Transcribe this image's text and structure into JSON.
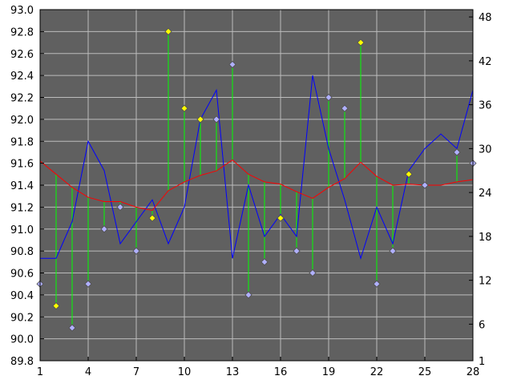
{
  "chart_data": {
    "type": "line",
    "title": "",
    "xlabel": "",
    "ylabel": "",
    "x": [
      1,
      2,
      3,
      4,
      5,
      6,
      7,
      8,
      9,
      10,
      11,
      12,
      13,
      14,
      15,
      16,
      17,
      18,
      19,
      20,
      21,
      22,
      23,
      24,
      25,
      26,
      27,
      28
    ],
    "x_ticks": [
      1,
      4,
      7,
      10,
      13,
      16,
      19,
      22,
      25,
      28
    ],
    "xlim": [
      1,
      28
    ],
    "ylim_left": [
      89.8,
      93.0
    ],
    "y_ticks_left": [
      "89.8",
      "90.0",
      "90.2",
      "90.4",
      "90.6",
      "90.8",
      "91.0",
      "91.2",
      "91.4",
      "91.6",
      "91.8",
      "92.0",
      "92.2",
      "92.4",
      "92.6",
      "92.8",
      "93.0"
    ],
    "ylim_right": [
      1,
      49
    ],
    "y_ticks_right": [
      "1",
      "6",
      "12",
      "18",
      "24",
      "30",
      "36",
      "42",
      "48"
    ],
    "grid": true,
    "series": [
      {
        "role": "markers-left",
        "values": [
          90.5,
          90.3,
          90.1,
          90.5,
          91.0,
          91.2,
          90.8,
          91.1,
          92.8,
          92.1,
          92.0,
          92.0,
          92.5,
          90.4,
          90.7,
          91.1,
          90.8,
          90.6,
          92.2,
          92.1,
          92.7,
          90.5,
          90.8,
          91.5,
          91.4,
          null,
          91.7,
          91.6
        ],
        "marker_colors": [
          "#b0b0ff",
          "#ffff00",
          "#b0b0ff",
          "#b0b0ff",
          "#b0b0ff",
          "#b0b0ff",
          "#b0b0ff",
          "#ffff00",
          "#ffff00",
          "#ffff00",
          "#ffff00",
          "#b0b0ff",
          "#b0b0ff",
          "#b0b0ff",
          "#b0b0ff",
          "#ffff00",
          "#b0b0ff",
          "#b0b0ff",
          "#b0b0ff",
          "#b0b0ff",
          "#ffff00",
          "#b0b0ff",
          "#b0b0ff",
          "#ffff00",
          "#b0b0ff",
          "#b0b0ff",
          "#b0b0ff",
          "#b0b0ff"
        ],
        "color": "#00ff00"
      },
      {
        "role": "line-right",
        "axis": "right",
        "values": [
          15,
          15,
          20,
          31,
          27,
          17,
          20,
          23,
          17,
          22,
          34,
          38,
          15,
          25,
          18,
          21,
          18,
          40,
          30,
          23,
          15,
          22,
          17,
          27,
          30,
          32,
          30,
          38
        ],
        "color": "#0000ff"
      },
      {
        "role": "line-left",
        "values": [
          91.62,
          91.5,
          91.38,
          91.29,
          91.25,
          91.25,
          91.2,
          91.17,
          91.35,
          91.43,
          91.49,
          91.53,
          91.63,
          91.5,
          91.43,
          91.41,
          91.34,
          91.28,
          91.38,
          91.46,
          91.61,
          91.48,
          91.4,
          91.41,
          91.4,
          91.4,
          91.43,
          91.45
        ],
        "color": "#ff0000"
      }
    ],
    "colors": {
      "plot_bg": "#606060",
      "grid": "#bcbcbc",
      "axis_text": "#000000"
    }
  }
}
